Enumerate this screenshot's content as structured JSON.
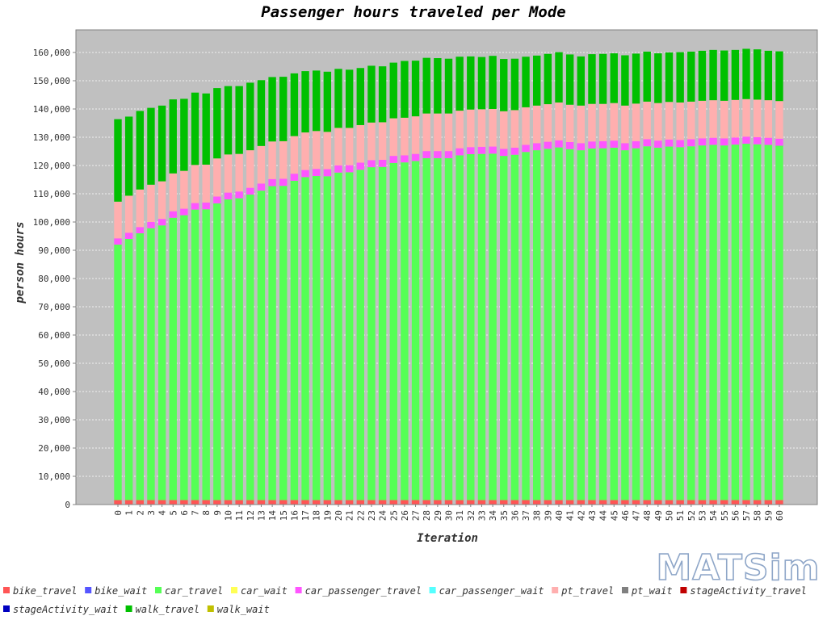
{
  "title": "Passenger hours traveled per Mode",
  "logo_text": "MATSim",
  "colors": {
    "plot_background": "#c0c0c0",
    "grid": "#ffffff",
    "series": {
      "bike_travel": "#ff5555",
      "bike_wait": "#5555ff",
      "car_travel": "#55ff55",
      "car_wait": "#ffff55",
      "car_passenger_travel": "#ff55ff",
      "car_passenger_wait": "#55ffff",
      "pt_travel": "#ffafaf",
      "pt_wait": "#808080",
      "stageActivity_travel": "#c00000",
      "stageActivity_wait": "#0000c0",
      "walk_travel": "#00c000",
      "walk_wait": "#c0c000"
    }
  },
  "chart_data": {
    "type": "bar",
    "stacked": true,
    "title": "Passenger hours traveled per Mode",
    "xlabel": "Iteration",
    "ylabel": "person hours",
    "ylim": [
      0,
      168000
    ],
    "yticks": [
      0,
      10000,
      20000,
      30000,
      40000,
      50000,
      60000,
      70000,
      80000,
      90000,
      100000,
      110000,
      120000,
      130000,
      140000,
      150000,
      160000
    ],
    "ytick_labels": [
      "0",
      "10,000",
      "20,000",
      "30,000",
      "40,000",
      "50,000",
      "60,000",
      "70,000",
      "80,000",
      "90,000",
      "100,000",
      "110,000",
      "120,000",
      "130,000",
      "140,000",
      "150,000",
      "160,000"
    ],
    "grid": true,
    "legend_position": "bottom",
    "categories": [
      "0",
      "1",
      "2",
      "3",
      "4",
      "5",
      "6",
      "7",
      "8",
      "9",
      "10",
      "11",
      "12",
      "13",
      "14",
      "15",
      "16",
      "17",
      "18",
      "19",
      "20",
      "21",
      "22",
      "23",
      "24",
      "25",
      "26",
      "27",
      "28",
      "29",
      "30",
      "31",
      "32",
      "33",
      "34",
      "35",
      "36",
      "37",
      "38",
      "39",
      "40",
      "41",
      "42",
      "43",
      "44",
      "45",
      "46",
      "47",
      "48",
      "49",
      "50",
      "51",
      "52",
      "53",
      "54",
      "55",
      "56",
      "57",
      "58",
      "59",
      "60"
    ],
    "series": [
      {
        "name": "bike_travel",
        "values": [
          1600,
          1600,
          1600,
          1600,
          1600,
          1600,
          1600,
          1600,
          1600,
          1600,
          1600,
          1600,
          1600,
          1600,
          1600,
          1600,
          1600,
          1600,
          1600,
          1600,
          1600,
          1600,
          1600,
          1600,
          1600,
          1600,
          1600,
          1600,
          1600,
          1600,
          1600,
          1600,
          1600,
          1600,
          1600,
          1600,
          1600,
          1600,
          1600,
          1600,
          1600,
          1600,
          1600,
          1600,
          1600,
          1600,
          1600,
          1600,
          1600,
          1600,
          1600,
          1600,
          1600,
          1600,
          1600,
          1600,
          1600,
          1600,
          1600,
          1600,
          1600
        ]
      },
      {
        "name": "bike_wait",
        "values": [
          0,
          0,
          0,
          0,
          0,
          0,
          0,
          0,
          0,
          0,
          0,
          0,
          0,
          0,
          0,
          0,
          0,
          0,
          0,
          0,
          0,
          0,
          0,
          0,
          0,
          0,
          0,
          0,
          0,
          0,
          0,
          0,
          0,
          0,
          0,
          0,
          0,
          0,
          0,
          0,
          0,
          0,
          0,
          0,
          0,
          0,
          0,
          0,
          0,
          0,
          0,
          0,
          0,
          0,
          0,
          0,
          0,
          0,
          0,
          0,
          0
        ]
      },
      {
        "name": "car_travel",
        "values": [
          90400,
          92400,
          94400,
          96200,
          97200,
          99900,
          100800,
          102800,
          102900,
          105000,
          106400,
          106800,
          108100,
          109500,
          111100,
          111200,
          113000,
          114300,
          114700,
          114600,
          115900,
          116000,
          116900,
          117800,
          117900,
          119300,
          119500,
          120000,
          121000,
          121000,
          121000,
          122000,
          122400,
          122500,
          122600,
          121800,
          122200,
          123200,
          123800,
          124300,
          124800,
          124200,
          123800,
          124400,
          124500,
          124700,
          123800,
          124500,
          125200,
          124700,
          125100,
          124900,
          125200,
          125500,
          125700,
          125500,
          125800,
          126100,
          125900,
          125700,
          125400
        ]
      },
      {
        "name": "car_wait",
        "values": [
          0,
          0,
          0,
          0,
          0,
          0,
          0,
          0,
          0,
          0,
          0,
          0,
          0,
          0,
          0,
          0,
          0,
          0,
          0,
          0,
          0,
          0,
          0,
          0,
          0,
          0,
          0,
          0,
          0,
          0,
          0,
          0,
          0,
          0,
          0,
          0,
          0,
          0,
          0,
          0,
          0,
          0,
          0,
          0,
          0,
          0,
          0,
          0,
          0,
          0,
          0,
          0,
          0,
          0,
          0,
          0,
          0,
          0,
          0,
          0,
          0
        ]
      },
      {
        "name": "car_passenger_travel",
        "values": [
          2200,
          2200,
          2200,
          2200,
          2300,
          2300,
          2300,
          2300,
          2400,
          2400,
          2400,
          2400,
          2400,
          2500,
          2500,
          2500,
          2500,
          2500,
          2500,
          2500,
          2500,
          2500,
          2500,
          2500,
          2500,
          2500,
          2500,
          2500,
          2500,
          2500,
          2500,
          2500,
          2500,
          2500,
          2500,
          2500,
          2500,
          2500,
          2500,
          2500,
          2500,
          2500,
          2500,
          2500,
          2500,
          2500,
          2500,
          2500,
          2500,
          2500,
          2500,
          2500,
          2500,
          2500,
          2500,
          2500,
          2500,
          2500,
          2500,
          2500,
          2500
        ]
      },
      {
        "name": "car_passenger_wait",
        "values": [
          0,
          0,
          0,
          0,
          0,
          0,
          0,
          0,
          0,
          0,
          0,
          0,
          0,
          0,
          0,
          0,
          0,
          0,
          0,
          0,
          0,
          0,
          0,
          0,
          0,
          0,
          0,
          0,
          0,
          0,
          0,
          0,
          0,
          0,
          0,
          0,
          0,
          0,
          0,
          0,
          0,
          0,
          0,
          0,
          0,
          0,
          0,
          0,
          0,
          0,
          0,
          0,
          0,
          0,
          0,
          0,
          0,
          0,
          0,
          0,
          0
        ]
      },
      {
        "name": "pt_travel",
        "values": [
          13000,
          13100,
          13300,
          13200,
          13300,
          13400,
          13400,
          13500,
          13400,
          13500,
          13500,
          13300,
          13300,
          13300,
          13300,
          13300,
          13300,
          13300,
          13400,
          13200,
          13300,
          13200,
          13300,
          13300,
          13300,
          13300,
          13300,
          13300,
          13300,
          13300,
          13300,
          13300,
          13300,
          13300,
          13300,
          13300,
          13300,
          13300,
          13300,
          13300,
          13400,
          13200,
          13300,
          13300,
          13200,
          13300,
          13300,
          13300,
          13300,
          13300,
          13300,
          13300,
          13300,
          13300,
          13300,
          13300,
          13300,
          13300,
          13300,
          13300,
          13300
        ]
      },
      {
        "name": "pt_wait",
        "values": [
          0,
          0,
          0,
          0,
          0,
          0,
          0,
          0,
          0,
          0,
          0,
          0,
          0,
          0,
          0,
          0,
          0,
          0,
          0,
          0,
          0,
          0,
          0,
          0,
          0,
          0,
          0,
          0,
          0,
          0,
          0,
          0,
          0,
          0,
          0,
          0,
          0,
          0,
          0,
          0,
          0,
          0,
          0,
          0,
          0,
          0,
          0,
          0,
          0,
          0,
          0,
          0,
          0,
          0,
          0,
          0,
          0,
          0,
          0,
          0,
          0
        ]
      },
      {
        "name": "stageActivity_travel",
        "values": [
          0,
          0,
          0,
          0,
          0,
          0,
          0,
          0,
          0,
          0,
          0,
          0,
          0,
          0,
          0,
          0,
          0,
          0,
          0,
          0,
          0,
          0,
          0,
          0,
          0,
          0,
          0,
          0,
          0,
          0,
          0,
          0,
          0,
          0,
          0,
          0,
          0,
          0,
          0,
          0,
          0,
          0,
          0,
          0,
          0,
          0,
          0,
          0,
          0,
          0,
          0,
          0,
          0,
          0,
          0,
          0,
          0,
          0,
          0,
          0,
          0
        ]
      },
      {
        "name": "stageActivity_wait",
        "values": [
          0,
          0,
          0,
          0,
          0,
          0,
          0,
          0,
          0,
          0,
          0,
          0,
          0,
          0,
          0,
          0,
          0,
          0,
          0,
          0,
          0,
          0,
          0,
          0,
          0,
          0,
          0,
          0,
          0,
          0,
          0,
          0,
          0,
          0,
          0,
          0,
          0,
          0,
          0,
          0,
          0,
          0,
          0,
          0,
          0,
          0,
          0,
          0,
          0,
          0,
          0,
          0,
          0,
          0,
          0,
          0,
          0,
          0,
          0,
          0,
          0
        ]
      },
      {
        "name": "walk_travel",
        "values": [
          29200,
          28000,
          27800,
          27200,
          26800,
          26200,
          25500,
          25600,
          25200,
          24900,
          24200,
          24000,
          23900,
          23300,
          22800,
          22800,
          22200,
          21700,
          21400,
          21300,
          20900,
          20600,
          20200,
          20100,
          19800,
          19700,
          20100,
          19700,
          19700,
          19600,
          19400,
          19100,
          18800,
          18500,
          18800,
          18500,
          18200,
          17900,
          17700,
          17800,
          17800,
          17800,
          17400,
          17600,
          17700,
          17600,
          17800,
          17700,
          17700,
          17600,
          17500,
          17800,
          17700,
          17700,
          17800,
          17800,
          17700,
          17800,
          17800,
          17500,
          17600
        ]
      },
      {
        "name": "walk_wait",
        "values": [
          0,
          0,
          0,
          0,
          0,
          0,
          0,
          0,
          0,
          0,
          0,
          0,
          0,
          0,
          0,
          0,
          0,
          0,
          0,
          0,
          0,
          0,
          0,
          0,
          0,
          0,
          0,
          0,
          0,
          0,
          0,
          0,
          0,
          0,
          0,
          0,
          0,
          0,
          0,
          0,
          0,
          0,
          0,
          0,
          0,
          0,
          0,
          0,
          0,
          0,
          0,
          0,
          0,
          0,
          0,
          0,
          0,
          0,
          0,
          0,
          0
        ]
      }
    ]
  }
}
